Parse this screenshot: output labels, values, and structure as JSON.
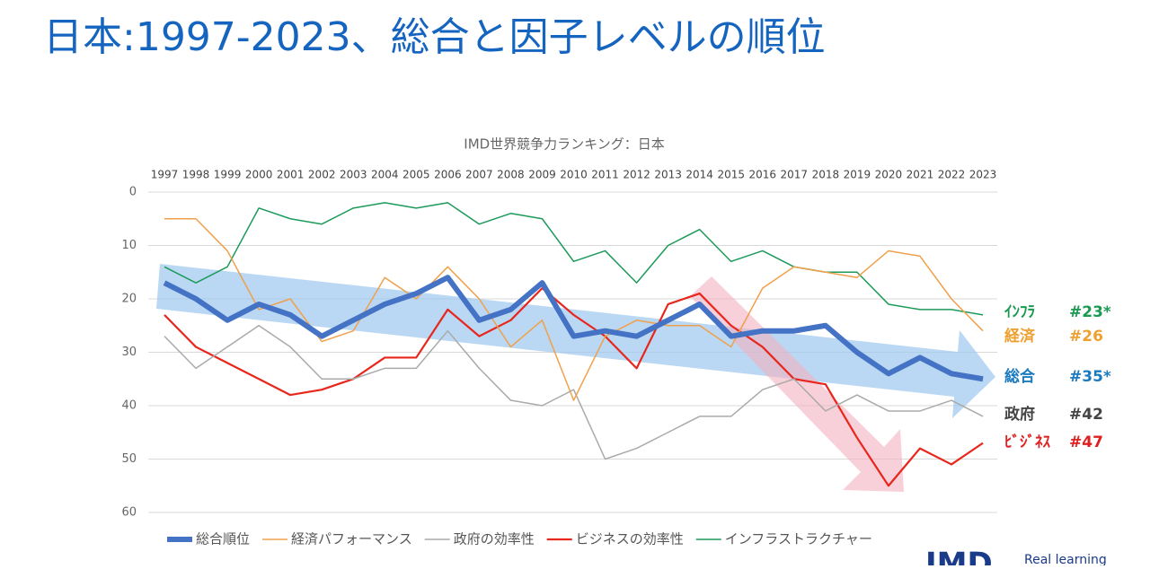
{
  "page_title": "日本:1997-2023、総合と因子レベルの順位",
  "chart_data": {
    "type": "line",
    "title": "IMD世界競争力ランキング：日本",
    "categories": [
      "1997",
      "1998",
      "1999",
      "2000",
      "2001",
      "2002",
      "2003",
      "2004",
      "2005",
      "2006",
      "2007",
      "2008",
      "2009",
      "2010",
      "2011",
      "2012",
      "2013",
      "2014",
      "2015",
      "2016",
      "2017",
      "2018",
      "2019",
      "2020",
      "2021",
      "2022",
      "2023"
    ],
    "ylim": [
      0,
      60
    ],
    "yticks": [
      0,
      10,
      20,
      30,
      40,
      50,
      60
    ],
    "y_inverted": true,
    "grid": true,
    "series": [
      {
        "name": "総合順位",
        "color": "#4472c4",
        "width": 6,
        "values": [
          17,
          20,
          24,
          21,
          23,
          27,
          24,
          21,
          19,
          16,
          24,
          22,
          17,
          27,
          26,
          27,
          24,
          21,
          27,
          26,
          26,
          25,
          30,
          34,
          31,
          34,
          35
        ]
      },
      {
        "name": "経済パフォーマンス",
        "color": "#f0a04b",
        "width": 1.5,
        "values": [
          5,
          5,
          11,
          22,
          20,
          28,
          26,
          16,
          20,
          14,
          20,
          29,
          24,
          39,
          27,
          24,
          25,
          25,
          29,
          18,
          14,
          15,
          16,
          11,
          12,
          20,
          26
        ]
      },
      {
        "name": "政府の効率性",
        "color": "#aaaaaa",
        "width": 1.5,
        "values": [
          27,
          33,
          29,
          25,
          29,
          35,
          35,
          33,
          33,
          26,
          33,
          39,
          40,
          37,
          50,
          48,
          45,
          42,
          42,
          37,
          35,
          41,
          38,
          41,
          41,
          39,
          42
        ]
      },
      {
        "name": "ビジネスの効率性",
        "color": "#e8261c",
        "width": 2.2,
        "values": [
          23,
          29,
          32,
          35,
          38,
          37,
          35,
          31,
          31,
          22,
          27,
          24,
          18,
          23,
          27,
          33,
          21,
          19,
          25,
          29,
          35,
          36,
          46,
          55,
          48,
          51,
          47
        ]
      },
      {
        "name": "インフラストラクチャー",
        "color": "#1d9a5a",
        "width": 1.5,
        "values": [
          14,
          17,
          14,
          3,
          5,
          6,
          3,
          2,
          3,
          2,
          6,
          4,
          5,
          13,
          11,
          17,
          10,
          7,
          13,
          11,
          14,
          15,
          15,
          21,
          22,
          22,
          23
        ]
      }
    ],
    "annotations": [
      {
        "label": "ｲﾝﾌﾗ",
        "value": "#23*",
        "color": "#1a9a50"
      },
      {
        "label": "経済",
        "value": "#26",
        "color": "#f0a030"
      },
      {
        "label": "総合",
        "value": "#35*",
        "color": "#1a7ac0"
      },
      {
        "label": "政府",
        "value": "#42",
        "color": "#444444"
      },
      {
        "label": "ﾋﾞｼﾞﾈｽ",
        "value": "#47",
        "color": "#e02020"
      }
    ]
  },
  "footer": {
    "logo": "IMD",
    "tagline": "Real learning"
  }
}
